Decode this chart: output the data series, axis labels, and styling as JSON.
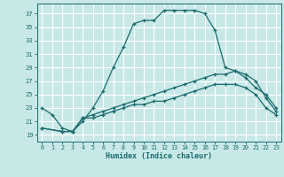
{
  "xlabel": "Humidex (Indice chaleur)",
  "bg_color": "#c8e8e8",
  "grid_color": "#ffffff",
  "line_color": "#1a6b6b",
  "xlim": [
    -0.5,
    23.5
  ],
  "ylim": [
    18.0,
    38.5
  ],
  "xticks": [
    0,
    1,
    2,
    3,
    4,
    5,
    6,
    7,
    8,
    9,
    10,
    11,
    12,
    13,
    14,
    15,
    16,
    17,
    18,
    19,
    20,
    21,
    22,
    23
  ],
  "yticks": [
    19,
    21,
    23,
    25,
    27,
    29,
    31,
    33,
    35,
    37
  ],
  "line1_x": [
    0,
    1,
    2,
    3,
    4,
    5,
    6,
    7,
    8,
    9,
    10,
    11,
    12,
    13,
    14,
    15,
    16,
    17,
    18,
    19,
    20,
    21,
    22,
    23
  ],
  "line1_y": [
    23,
    22,
    20,
    19.5,
    21,
    23,
    25.5,
    29,
    32,
    35.5,
    36,
    36,
    37.5,
    37.5,
    37.5,
    37.5,
    37,
    34.5,
    29,
    28.5,
    27.5,
    26,
    25,
    23
  ],
  "line2_x": [
    0,
    2,
    3,
    4,
    5,
    6,
    7,
    8,
    9,
    10,
    11,
    12,
    13,
    14,
    15,
    16,
    17,
    18,
    19,
    20,
    21,
    22,
    23
  ],
  "line2_y": [
    20,
    19.5,
    19.5,
    21.5,
    22,
    22.5,
    23,
    23.5,
    24,
    24.5,
    25,
    25.5,
    26,
    26.5,
    27,
    27.5,
    28,
    28,
    28.5,
    28,
    27,
    24.5,
    22.5
  ],
  "line3_x": [
    0,
    2,
    3,
    4,
    5,
    6,
    7,
    8,
    9,
    10,
    11,
    12,
    13,
    14,
    15,
    16,
    17,
    18,
    19,
    20,
    21,
    22,
    23
  ],
  "line3_y": [
    20,
    19.5,
    19.5,
    21.5,
    21.5,
    22,
    22.5,
    23,
    23.5,
    23.5,
    24,
    24,
    24.5,
    25,
    25.5,
    26,
    26.5,
    26.5,
    26.5,
    26,
    25,
    23,
    22
  ]
}
